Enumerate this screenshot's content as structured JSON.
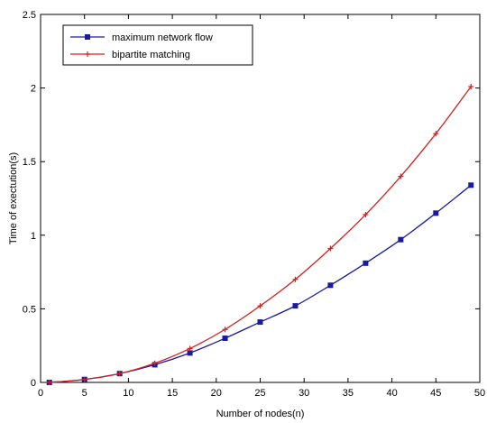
{
  "chart_data": {
    "type": "line",
    "xlabel": "Number of nodes(n)",
    "ylabel": "Time of exectution(s)",
    "xlim": [
      0,
      50
    ],
    "ylim": [
      0,
      2.5
    ],
    "xticks": [
      "0",
      "5",
      "10",
      "15",
      "20",
      "25",
      "30",
      "35",
      "40",
      "45",
      "50"
    ],
    "yticks": [
      "0",
      "0.5",
      "1",
      "1.5",
      "2",
      "2.5"
    ],
    "grid": false,
    "legend_position": "top-left",
    "series": [
      {
        "name": "maximum network flow",
        "color": "#1a1aa0",
        "marker": "square",
        "x": [
          1,
          5,
          9,
          13,
          17,
          21,
          25,
          29,
          33,
          37,
          41,
          45,
          49
        ],
        "y": [
          0.0,
          0.02,
          0.06,
          0.12,
          0.2,
          0.3,
          0.41,
          0.52,
          0.66,
          0.81,
          0.97,
          1.15,
          1.34
        ]
      },
      {
        "name": "bipartite matching",
        "color": "#d42020",
        "marker": "plus",
        "x": [
          1,
          5,
          9,
          13,
          17,
          21,
          25,
          29,
          33,
          37,
          41,
          45,
          49
        ],
        "y": [
          0.0,
          0.02,
          0.06,
          0.13,
          0.23,
          0.36,
          0.52,
          0.7,
          0.91,
          1.14,
          1.4,
          1.69,
          2.01
        ]
      }
    ]
  }
}
